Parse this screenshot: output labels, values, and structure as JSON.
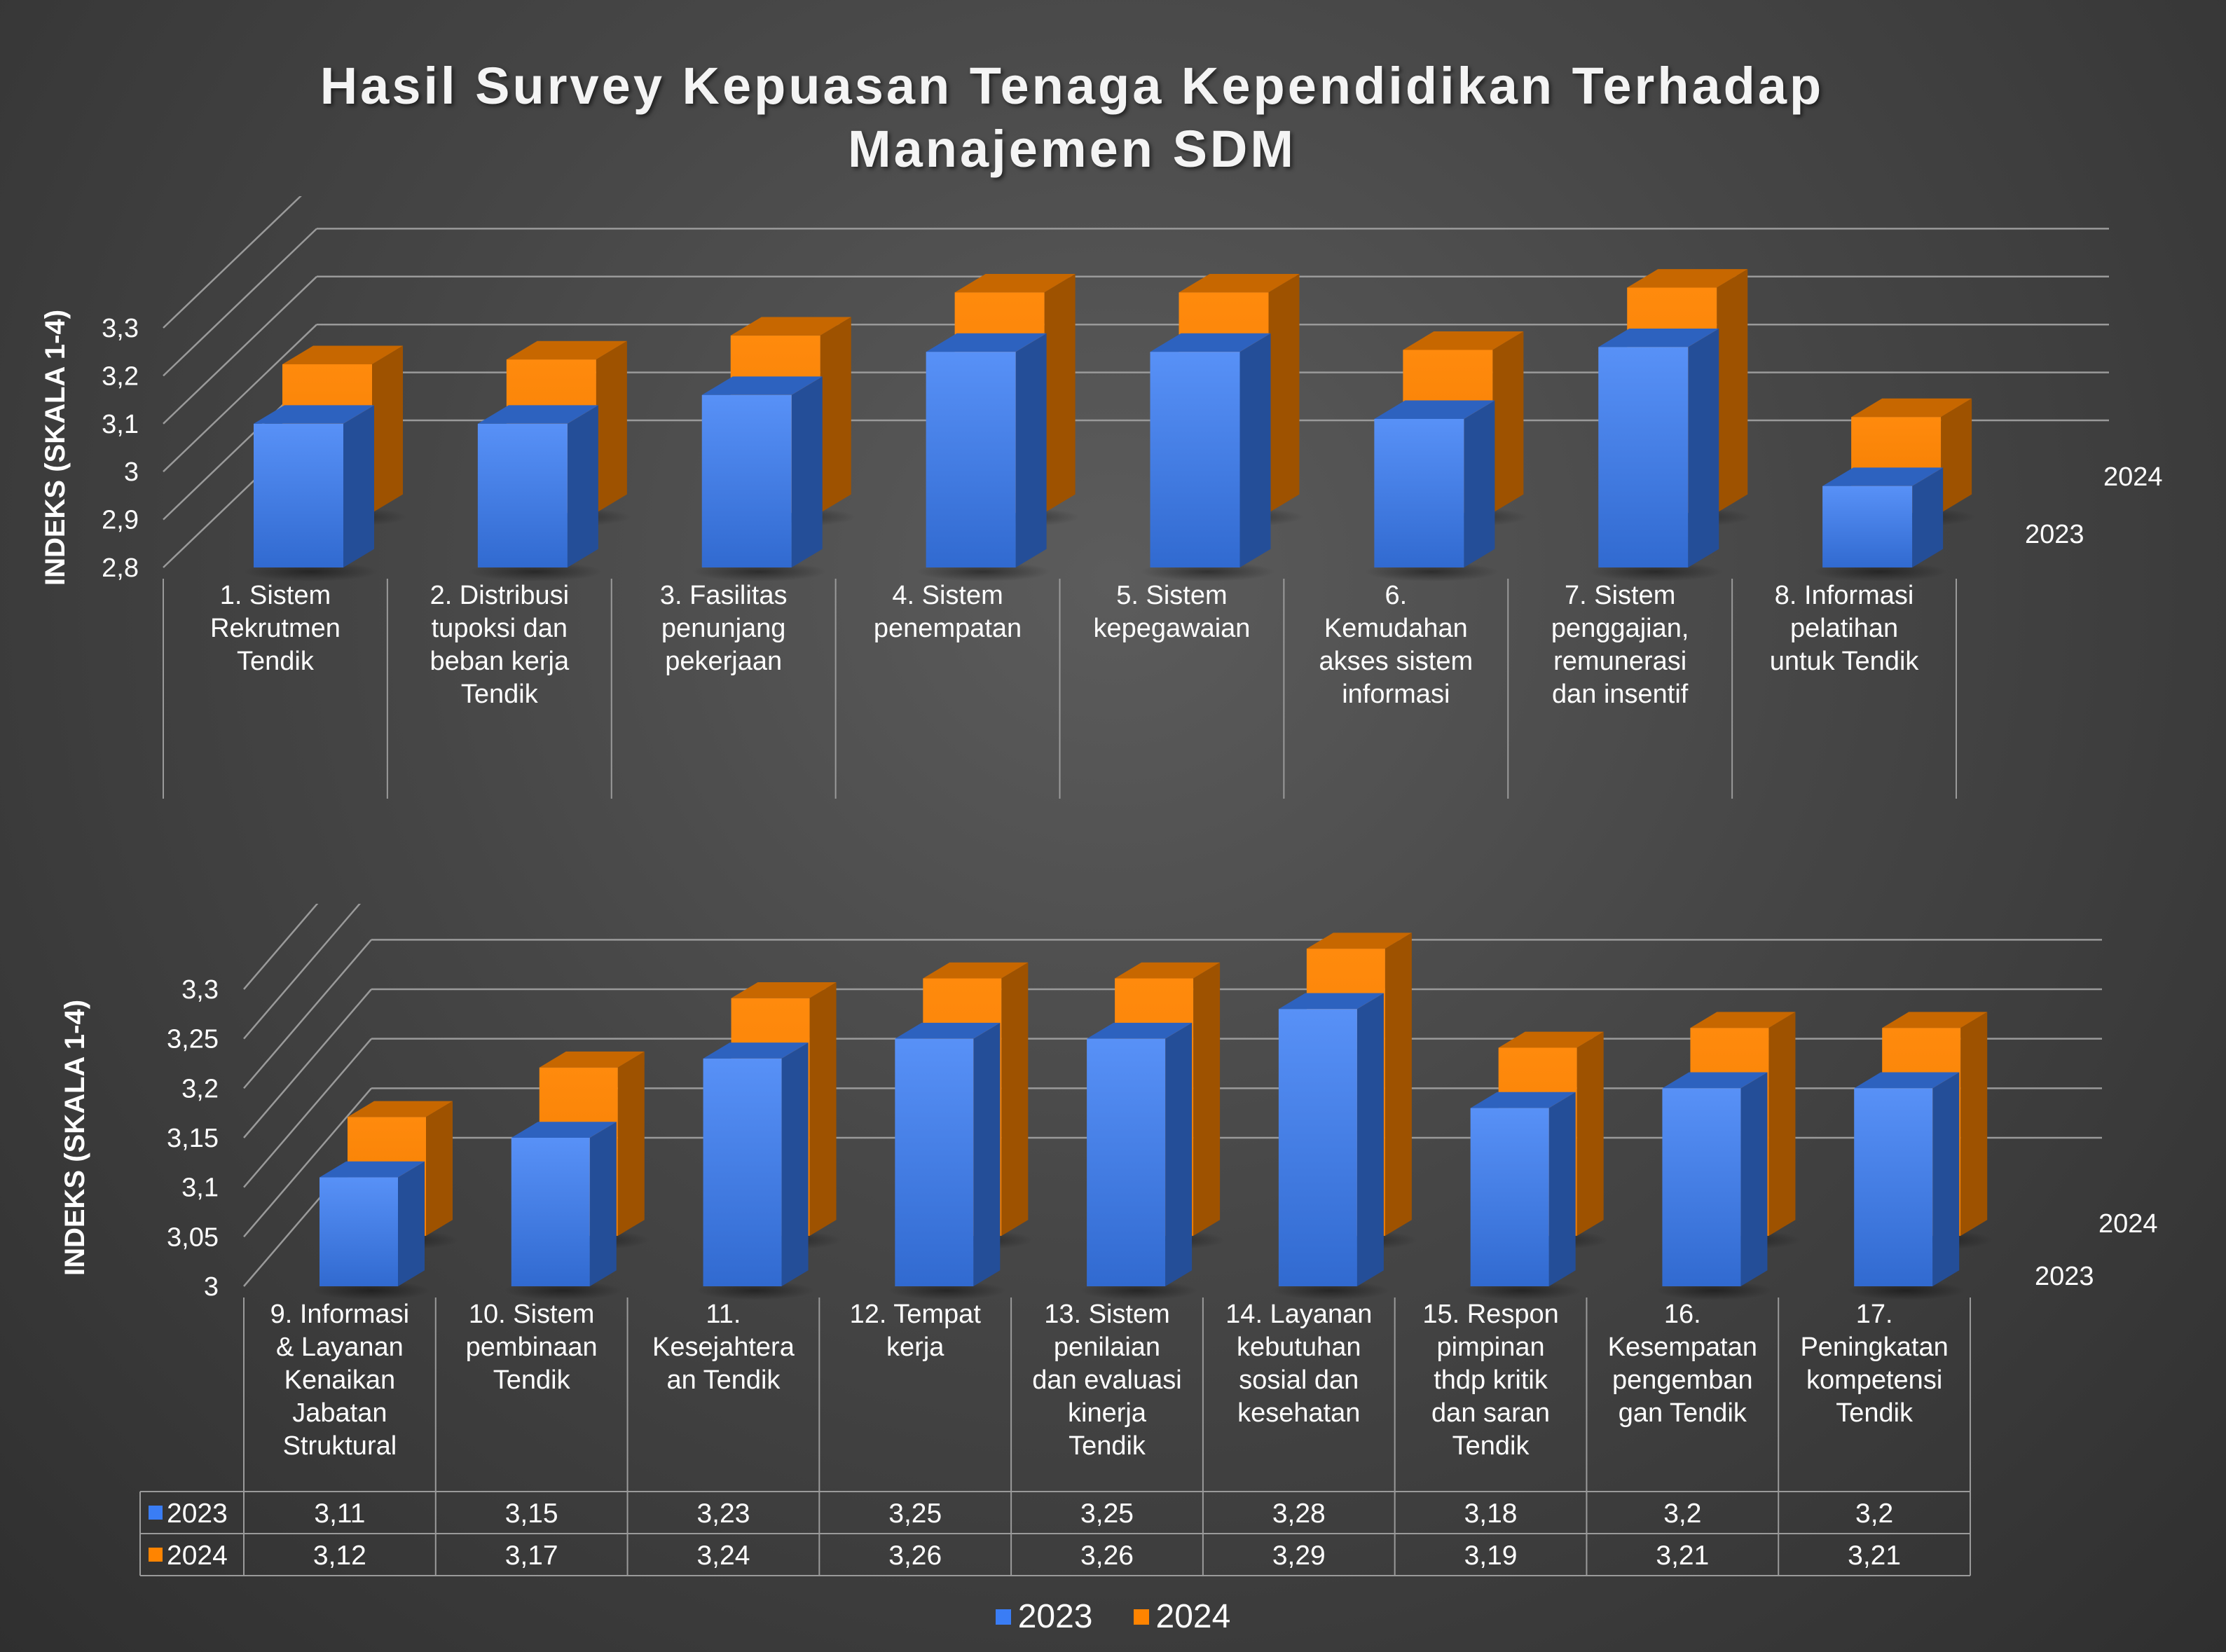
{
  "title_lines": [
    "Hasil Survey Kepuasan Tenaga Kependidikan Terhadap",
    "Manajemen SDM"
  ],
  "colors": {
    "series_2023": "#3a7df5",
    "series_2024": "#ff8400"
  },
  "legend": [
    {
      "label": "2023",
      "color": "#3a7df5"
    },
    {
      "label": "2024",
      "color": "#ff8400"
    }
  ],
  "chart_data": [
    {
      "type": "bar",
      "title": "Hasil Survey Kepuasan Tenaga Kependidikan Terhadap Manajemen SDM",
      "ylabel": "INDEKS (SKALA 1-4)",
      "ylim": [
        2.8,
        3.3
      ],
      "y_ticks": [
        "2,8",
        "2,9",
        "3",
        "3,1",
        "3,2",
        "3,3"
      ],
      "depth_labels": [
        "2024",
        "2023"
      ],
      "categories": [
        "1. Sistem Rekrutmen Tendik",
        "2. Distribusi tupoksi dan beban kerja Tendik",
        "3. Fasilitas penunjang pekerjaan",
        "4. Sistem penempatan",
        "5. Sistem kepegawaian",
        "6. Kemudahan akses sistem informasi",
        "7. Sistem penggajian, remunerasi dan insentif",
        "8. Informasi pelatihan untuk Tendik"
      ],
      "category_lines": [
        [
          "1. Sistem",
          "Rekrutmen",
          "Tendik"
        ],
        [
          "2. Distribusi",
          "tupoksi dan",
          "beban kerja",
          "Tendik"
        ],
        [
          "3. Fasilitas",
          "penunjang",
          "pekerjaan"
        ],
        [
          "4. Sistem",
          "penempatan"
        ],
        [
          "5. Sistem",
          "kepegawaian"
        ],
        [
          "6.",
          "Kemudahan",
          "akses sistem",
          "informasi"
        ],
        [
          "7. Sistem",
          "penggajian,",
          "remunerasi",
          "dan insentif"
        ],
        [
          "8. Informasi",
          "pelatihan",
          "untuk Tendik"
        ]
      ],
      "series": [
        {
          "name": "2023",
          "values": [
            3.1,
            3.1,
            3.16,
            3.25,
            3.25,
            3.11,
            3.26,
            2.97
          ],
          "labels": [
            "3,1",
            "3,1",
            "3,16",
            "3,25",
            "3,25",
            "3,11",
            "3,26",
            "2,97"
          ]
        },
        {
          "name": "2024",
          "values": [
            3.11,
            3.12,
            3.17,
            3.26,
            3.26,
            3.14,
            3.27,
            3.0
          ],
          "labels": [
            "3,11",
            "3,12",
            "3,17",
            "3,26",
            "3,26",
            "3,14",
            "3,27",
            "3"
          ]
        }
      ],
      "data_table": true,
      "grid": true
    },
    {
      "type": "bar",
      "ylabel": "INDEKS (SKALA 1-4)",
      "ylim": [
        3.0,
        3.3
      ],
      "y_ticks": [
        "3",
        "3,05",
        "3,1",
        "3,15",
        "3,2",
        "3,25",
        "3,3"
      ],
      "depth_labels": [
        "2024",
        "2023"
      ],
      "categories": [
        "9. Informasi & Layanan Kenaikan Jabatan Struktural",
        "10. Sistem pembinaan Tendik",
        "11. Kesejahteraan Tendik",
        "12. Tempat kerja",
        "13. Sistem penilaian dan evaluasi kinerja Tendik",
        "14. Layanan kebutuhan sosial dan kesehatan",
        "15. Respon pimpinan thdp kritik dan saran Tendik",
        "16. Kesempatan pengembangan Tendik",
        "17. Peningkatan kompetensi Tendik"
      ],
      "category_lines": [
        [
          "9. Informasi",
          "& Layanan",
          "Kenaikan",
          "Jabatan",
          "Struktural"
        ],
        [
          "10. Sistem",
          "pembinaan",
          "Tendik"
        ],
        [
          "11.",
          "Kesejahtera",
          "an Tendik"
        ],
        [
          "12. Tempat",
          "kerja"
        ],
        [
          "13. Sistem",
          "penilaian",
          "dan evaluasi",
          "kinerja",
          "Tendik"
        ],
        [
          "14. Layanan",
          "kebutuhan",
          "sosial dan",
          "kesehatan"
        ],
        [
          "15. Respon",
          "pimpinan",
          "thdp kritik",
          "dan saran",
          "Tendik"
        ],
        [
          "16.",
          "Kesempatan",
          "pengemban",
          "gan Tendik"
        ],
        [
          "17.",
          "Peningkatan",
          "kompetensi",
          "Tendik"
        ]
      ],
      "series": [
        {
          "name": "2023",
          "values": [
            3.11,
            3.15,
            3.23,
            3.25,
            3.25,
            3.28,
            3.18,
            3.2,
            3.2
          ],
          "labels": [
            "3,11",
            "3,15",
            "3,23",
            "3,25",
            "3,25",
            "3,28",
            "3,18",
            "3,2",
            "3,2"
          ]
        },
        {
          "name": "2024",
          "values": [
            3.12,
            3.17,
            3.24,
            3.26,
            3.26,
            3.29,
            3.19,
            3.21,
            3.21
          ],
          "labels": [
            "3,12",
            "3,17",
            "3,24",
            "3,26",
            "3,26",
            "3,29",
            "3,19",
            "3,21",
            "3,21"
          ]
        }
      ],
      "data_table": true,
      "grid": true
    }
  ]
}
